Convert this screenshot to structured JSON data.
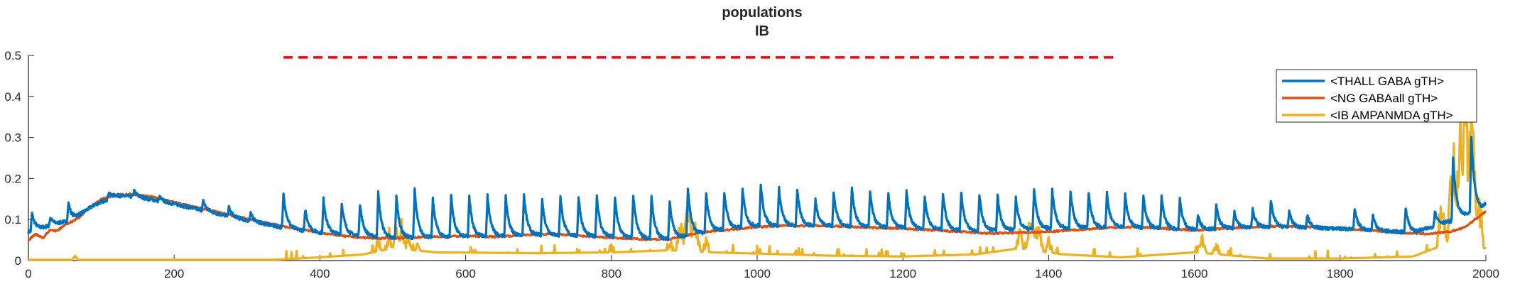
{
  "chart_data": {
    "type": "line",
    "title": "populations",
    "subtitle": "IB",
    "xlabel": "",
    "ylabel": "",
    "xlim": [
      0,
      2000
    ],
    "ylim": [
      0,
      0.5
    ],
    "xticks": [
      "0",
      "200",
      "400",
      "600",
      "800",
      "1000",
      "1200",
      "1400",
      "1600",
      "1800",
      "2000"
    ],
    "yticks": [
      "0",
      "0.1",
      "0.2",
      "0.3",
      "0.4",
      "0.5"
    ],
    "legend_position": "top-right",
    "grid": false,
    "reference_line": {
      "y": 0.495,
      "x_start": 350,
      "x_end": 1490,
      "color": "#ff0000",
      "style": "dashed"
    },
    "series": [
      {
        "name": "<THALL GABA gTH>",
        "color": "#0072bd",
        "baseline": [
          [
            0,
            0.07
          ],
          [
            30,
            0.085
          ],
          [
            60,
            0.1
          ],
          [
            90,
            0.135
          ],
          [
            120,
            0.158
          ],
          [
            150,
            0.155
          ],
          [
            200,
            0.138
          ],
          [
            250,
            0.118
          ],
          [
            300,
            0.098
          ],
          [
            350,
            0.08
          ],
          [
            400,
            0.068
          ],
          [
            500,
            0.055
          ],
          [
            600,
            0.058
          ],
          [
            700,
            0.062
          ],
          [
            800,
            0.058
          ],
          [
            880,
            0.052
          ],
          [
            950,
            0.075
          ],
          [
            1000,
            0.085
          ],
          [
            1100,
            0.085
          ],
          [
            1200,
            0.08
          ],
          [
            1300,
            0.072
          ],
          [
            1400,
            0.078
          ],
          [
            1500,
            0.082
          ],
          [
            1600,
            0.075
          ],
          [
            1700,
            0.082
          ],
          [
            1800,
            0.078
          ],
          [
            1900,
            0.068
          ],
          [
            1950,
            0.095
          ],
          [
            2000,
            0.13
          ]
        ],
        "spikes": [
          [
            5,
            0.115
          ],
          [
            30,
            0.105
          ],
          [
            55,
            0.14
          ],
          [
            70,
            0.1
          ],
          [
            110,
            0.165
          ],
          [
            145,
            0.17
          ],
          [
            180,
            0.155
          ],
          [
            240,
            0.145
          ],
          [
            275,
            0.13
          ],
          [
            305,
            0.115
          ],
          [
            350,
            0.165
          ],
          [
            380,
            0.125
          ],
          [
            405,
            0.15
          ],
          [
            430,
            0.14
          ],
          [
            455,
            0.138
          ],
          [
            480,
            0.165
          ],
          [
            505,
            0.155
          ],
          [
            530,
            0.172
          ],
          [
            555,
            0.15
          ],
          [
            580,
            0.16
          ],
          [
            605,
            0.155
          ],
          [
            630,
            0.158
          ],
          [
            655,
            0.155
          ],
          [
            680,
            0.16
          ],
          [
            705,
            0.148
          ],
          [
            730,
            0.158
          ],
          [
            755,
            0.155
          ],
          [
            780,
            0.158
          ],
          [
            805,
            0.152
          ],
          [
            830,
            0.16
          ],
          [
            855,
            0.155
          ],
          [
            880,
            0.145
          ],
          [
            905,
            0.178
          ],
          [
            930,
            0.165
          ],
          [
            955,
            0.168
          ],
          [
            980,
            0.175
          ],
          [
            1005,
            0.185
          ],
          [
            1030,
            0.175
          ],
          [
            1055,
            0.172
          ],
          [
            1080,
            0.148
          ],
          [
            1105,
            0.165
          ],
          [
            1130,
            0.178
          ],
          [
            1155,
            0.168
          ],
          [
            1180,
            0.162
          ],
          [
            1205,
            0.168
          ],
          [
            1230,
            0.155
          ],
          [
            1255,
            0.165
          ],
          [
            1280,
            0.168
          ],
          [
            1305,
            0.16
          ],
          [
            1330,
            0.158
          ],
          [
            1355,
            0.152
          ],
          [
            1380,
            0.175
          ],
          [
            1405,
            0.172
          ],
          [
            1430,
            0.168
          ],
          [
            1455,
            0.165
          ],
          [
            1480,
            0.165
          ],
          [
            1505,
            0.16
          ],
          [
            1530,
            0.16
          ],
          [
            1555,
            0.155
          ],
          [
            1580,
            0.15
          ],
          [
            1605,
            0.11
          ],
          [
            1630,
            0.135
          ],
          [
            1655,
            0.12
          ],
          [
            1680,
            0.125
          ],
          [
            1705,
            0.145
          ],
          [
            1730,
            0.12
          ],
          [
            1755,
            0.11
          ],
          [
            1820,
            0.125
          ],
          [
            1845,
            0.11
          ],
          [
            1890,
            0.13
          ],
          [
            1930,
            0.12
          ],
          [
            1955,
            0.25
          ],
          [
            1980,
            0.3
          ],
          [
            1998,
            0.135
          ]
        ]
      },
      {
        "name": "<NG GABAall gTH>",
        "color": "#d95319",
        "points": [
          [
            0,
            0.05
          ],
          [
            10,
            0.065
          ],
          [
            20,
            0.055
          ],
          [
            30,
            0.075
          ],
          [
            40,
            0.072
          ],
          [
            50,
            0.088
          ],
          [
            60,
            0.095
          ],
          [
            70,
            0.105
          ],
          [
            80,
            0.125
          ],
          [
            100,
            0.15
          ],
          [
            120,
            0.16
          ],
          [
            140,
            0.162
          ],
          [
            170,
            0.155
          ],
          [
            200,
            0.142
          ],
          [
            240,
            0.126
          ],
          [
            280,
            0.11
          ],
          [
            320,
            0.094
          ],
          [
            360,
            0.08
          ],
          [
            400,
            0.068
          ],
          [
            440,
            0.058
          ],
          [
            480,
            0.054
          ],
          [
            520,
            0.056
          ],
          [
            560,
            0.058
          ],
          [
            600,
            0.06
          ],
          [
            640,
            0.058
          ],
          [
            680,
            0.062
          ],
          [
            720,
            0.065
          ],
          [
            760,
            0.06
          ],
          [
            800,
            0.056
          ],
          [
            840,
            0.052
          ],
          [
            880,
            0.052
          ],
          [
            900,
            0.06
          ],
          [
            920,
            0.068
          ],
          [
            960,
            0.075
          ],
          [
            1000,
            0.082
          ],
          [
            1040,
            0.085
          ],
          [
            1080,
            0.085
          ],
          [
            1120,
            0.083
          ],
          [
            1160,
            0.08
          ],
          [
            1200,
            0.078
          ],
          [
            1240,
            0.074
          ],
          [
            1280,
            0.07
          ],
          [
            1320,
            0.066
          ],
          [
            1360,
            0.068
          ],
          [
            1400,
            0.07
          ],
          [
            1440,
            0.075
          ],
          [
            1480,
            0.08
          ],
          [
            1520,
            0.082
          ],
          [
            1560,
            0.078
          ],
          [
            1600,
            0.074
          ],
          [
            1640,
            0.078
          ],
          [
            1680,
            0.082
          ],
          [
            1720,
            0.084
          ],
          [
            1760,
            0.082
          ],
          [
            1800,
            0.078
          ],
          [
            1840,
            0.074
          ],
          [
            1880,
            0.068
          ],
          [
            1920,
            0.065
          ],
          [
            1950,
            0.07
          ],
          [
            1970,
            0.08
          ],
          [
            1985,
            0.1
          ],
          [
            2000,
            0.12
          ]
        ]
      },
      {
        "name": "<IB AMPANMDA gTH>",
        "color": "#edb120",
        "baseline": [
          [
            0,
            0.002
          ],
          [
            60,
            0.002
          ],
          [
            64,
            0.012
          ],
          [
            68,
            0.002
          ],
          [
            340,
            0.002
          ],
          [
            400,
            0.008
          ],
          [
            460,
            0.015
          ],
          [
            500,
            0.03
          ],
          [
            560,
            0.02
          ],
          [
            700,
            0.018
          ],
          [
            800,
            0.02
          ],
          [
            880,
            0.025
          ],
          [
            940,
            0.02
          ],
          [
            1100,
            0.012
          ],
          [
            1200,
            0.01
          ],
          [
            1300,
            0.015
          ],
          [
            1360,
            0.03
          ],
          [
            1420,
            0.015
          ],
          [
            1500,
            0.008
          ],
          [
            1600,
            0.02
          ],
          [
            1700,
            0.005
          ],
          [
            1800,
            0.005
          ],
          [
            1900,
            0.01
          ],
          [
            1930,
            0.03
          ],
          [
            2000,
            0.03
          ]
        ],
        "bursts": [
          [
            480,
            0.06
          ],
          [
            495,
            0.08
          ],
          [
            505,
            0.09
          ],
          [
            512,
            0.11
          ],
          [
            520,
            0.075
          ],
          [
            535,
            0.05
          ],
          [
            800,
            0.04
          ],
          [
            880,
            0.06
          ],
          [
            895,
            0.1
          ],
          [
            905,
            0.175
          ],
          [
            915,
            0.12
          ],
          [
            930,
            0.06
          ],
          [
            1360,
            0.09
          ],
          [
            1375,
            0.155
          ],
          [
            1385,
            0.11
          ],
          [
            1400,
            0.06
          ],
          [
            1610,
            0.07
          ],
          [
            1630,
            0.05
          ],
          [
            1940,
            0.2
          ],
          [
            1955,
            0.35
          ],
          [
            1965,
            0.47
          ],
          [
            1972,
            0.5
          ],
          [
            1980,
            0.45
          ],
          [
            1990,
            0.2
          ],
          [
            2000,
            0.03
          ]
        ]
      }
    ]
  }
}
